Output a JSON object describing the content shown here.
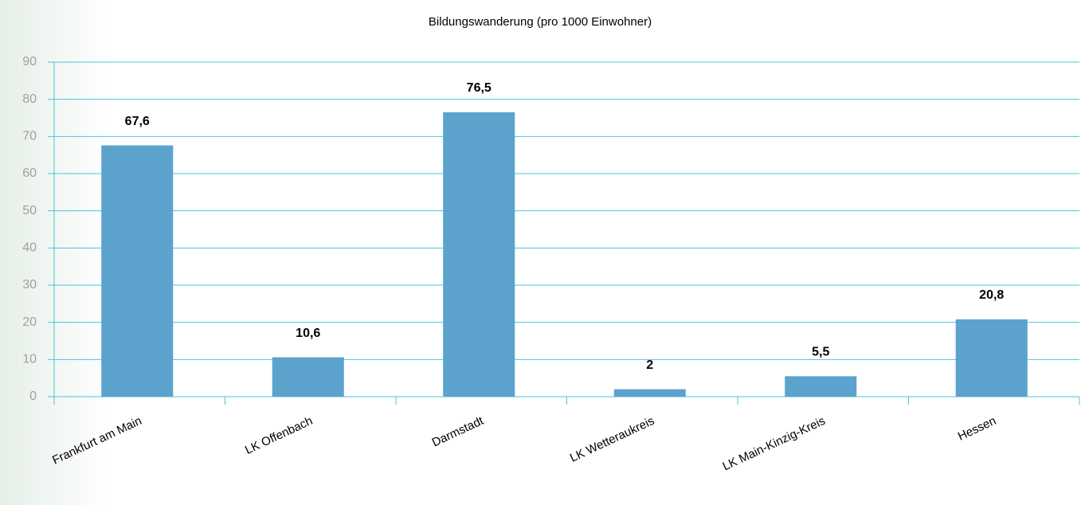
{
  "chart_data": {
    "type": "bar",
    "title": "Bildungswanderung (pro 1000 Einwohner)",
    "categories": [
      "Frankfurt am Main",
      "LK Offenbach",
      "Darmstadt",
      "LK Wetteraukreis",
      "LK Main-Kinzig-Kreis",
      "Hessen"
    ],
    "values": [
      67.6,
      10.6,
      76.5,
      2,
      5.5,
      20.8
    ],
    "value_labels": [
      "67,6",
      "10,6",
      "76,5",
      "2",
      "5,5",
      "20,8"
    ],
    "color": "#5ba3cc",
    "ylim": [
      0,
      90
    ],
    "yticks": [
      0,
      10,
      20,
      30,
      40,
      50,
      60,
      70,
      80,
      90
    ],
    "grid": true
  }
}
